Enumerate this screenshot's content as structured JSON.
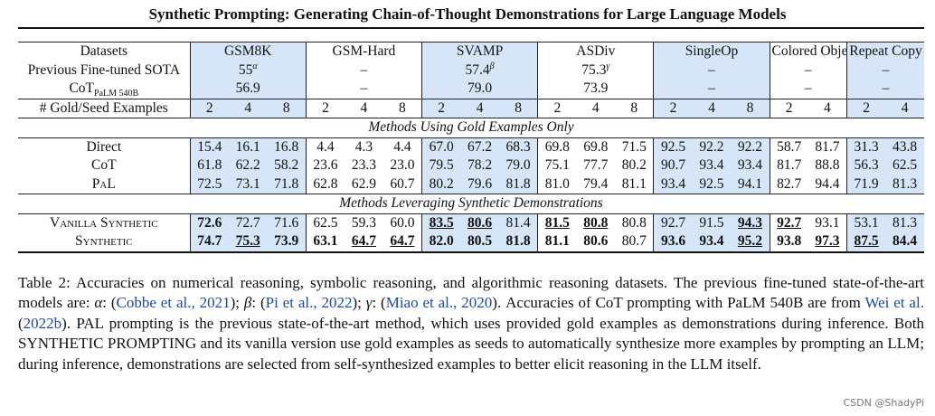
{
  "title": "Synthetic Prompting: Generating Chain-of-Thought Demonstrations for Large Language Models",
  "table": {
    "header_label": "Datasets",
    "datasets": [
      "GSM8K",
      "GSM-Hard",
      "SVAMP",
      "ASDiv",
      "SingleOp",
      "Colored Objects",
      "Repeat Copy"
    ],
    "sota_label": "Previous Fine-tuned SOTA",
    "sota": [
      {
        "value": "55",
        "sup": "α"
      },
      {
        "value": "–",
        "sup": ""
      },
      {
        "value": "57.4",
        "sup": "β"
      },
      {
        "value": "75.3",
        "sup": "γ"
      },
      {
        "value": "–",
        "sup": ""
      },
      {
        "value": "–",
        "sup": ""
      },
      {
        "value": "–",
        "sup": ""
      }
    ],
    "cot_label_main": "CoT",
    "cot_label_sub": "PaLM 540B",
    "cot": [
      "56.9",
      "–",
      "79.0",
      "73.9",
      "–",
      "–",
      "–"
    ],
    "seed_label": "# Gold/Seed Examples",
    "seed_counts": [
      "2",
      "4",
      "8",
      "2",
      "4",
      "8",
      "2",
      "4",
      "8",
      "2",
      "4",
      "8",
      "2",
      "4",
      "8",
      "2",
      "4",
      "2",
      "4"
    ],
    "section_gold": "Methods Using Gold Examples Only",
    "section_synthetic": "Methods Leveraging Synthetic Demonstrations",
    "rows_gold": [
      {
        "method": "Direct",
        "values": [
          "15.4",
          "16.1",
          "16.8",
          "4.4",
          "4.3",
          "4.4",
          "67.0",
          "67.2",
          "68.3",
          "69.8",
          "69.8",
          "71.5",
          "92.5",
          "92.2",
          "92.2",
          "58.7",
          "81.7",
          "31.3",
          "43.8"
        ]
      },
      {
        "method": "CoT",
        "values": [
          "61.8",
          "62.2",
          "58.2",
          "23.6",
          "23.3",
          "23.0",
          "79.5",
          "78.2",
          "79.0",
          "75.1",
          "77.7",
          "80.2",
          "90.7",
          "93.4",
          "93.4",
          "81.7",
          "88.8",
          "56.3",
          "62.5"
        ]
      },
      {
        "method": "PaL",
        "values": [
          "72.5",
          "73.1",
          "71.8",
          "62.8",
          "62.9",
          "60.7",
          "80.2",
          "79.6",
          "81.8",
          "81.0",
          "79.4",
          "81.1",
          "93.4",
          "92.5",
          "94.1",
          "82.7",
          "94.4",
          "71.9",
          "81.3"
        ]
      }
    ],
    "rows_synthetic": [
      {
        "method": "Vanilla Synthetic",
        "values": [
          "72.6",
          "72.7",
          "71.6",
          "62.5",
          "59.3",
          "60.0",
          "83.5",
          "80.6",
          "81.4",
          "81.5",
          "80.8",
          "80.8",
          "92.7",
          "91.5",
          "94.3",
          "92.7",
          "93.1",
          "53.1",
          "81.3"
        ]
      },
      {
        "method": "Synthetic",
        "values": [
          "74.7",
          "75.3",
          "73.9",
          "63.1",
          "64.7",
          "64.7",
          "82.0",
          "80.5",
          "81.8",
          "81.1",
          "80.6",
          "80.7",
          "93.6",
          "93.4",
          "95.2",
          "93.8",
          "97.3",
          "87.5",
          "84.4"
        ]
      }
    ]
  },
  "caption": {
    "lead": "Table 2: Accuracies on numerical reasoning, symbolic reasoning, and algorithmic reasoning datasets. The previous fine-tuned state-of-the-art models are: ",
    "alpha": "α",
    "cite1": "Cobbe et al., 2021",
    "beta": "β",
    "cite2": "Pi et al., 2022",
    "gamma": "γ",
    "cite3": "Miao et al., 2020",
    "mid": ". Accuracies of CoT prompting with PaLM 540B are from ",
    "cite4a": "Wei et al.",
    "cite4b": "2022b",
    "rest": ". PAL prompting is the previous state-of-the-art method, which uses provided gold examples as demonstrations during inference. Both SYNTHETIC PROMPTING and its vanilla version use gold examples as seeds to automatically synthesize more examples by prompting an LLM; during inference, demonstrations are selected from self-synthesized examples to better elicit reasoning in the LLM itself."
  },
  "watermark": "CSDN @ShadyPi"
}
